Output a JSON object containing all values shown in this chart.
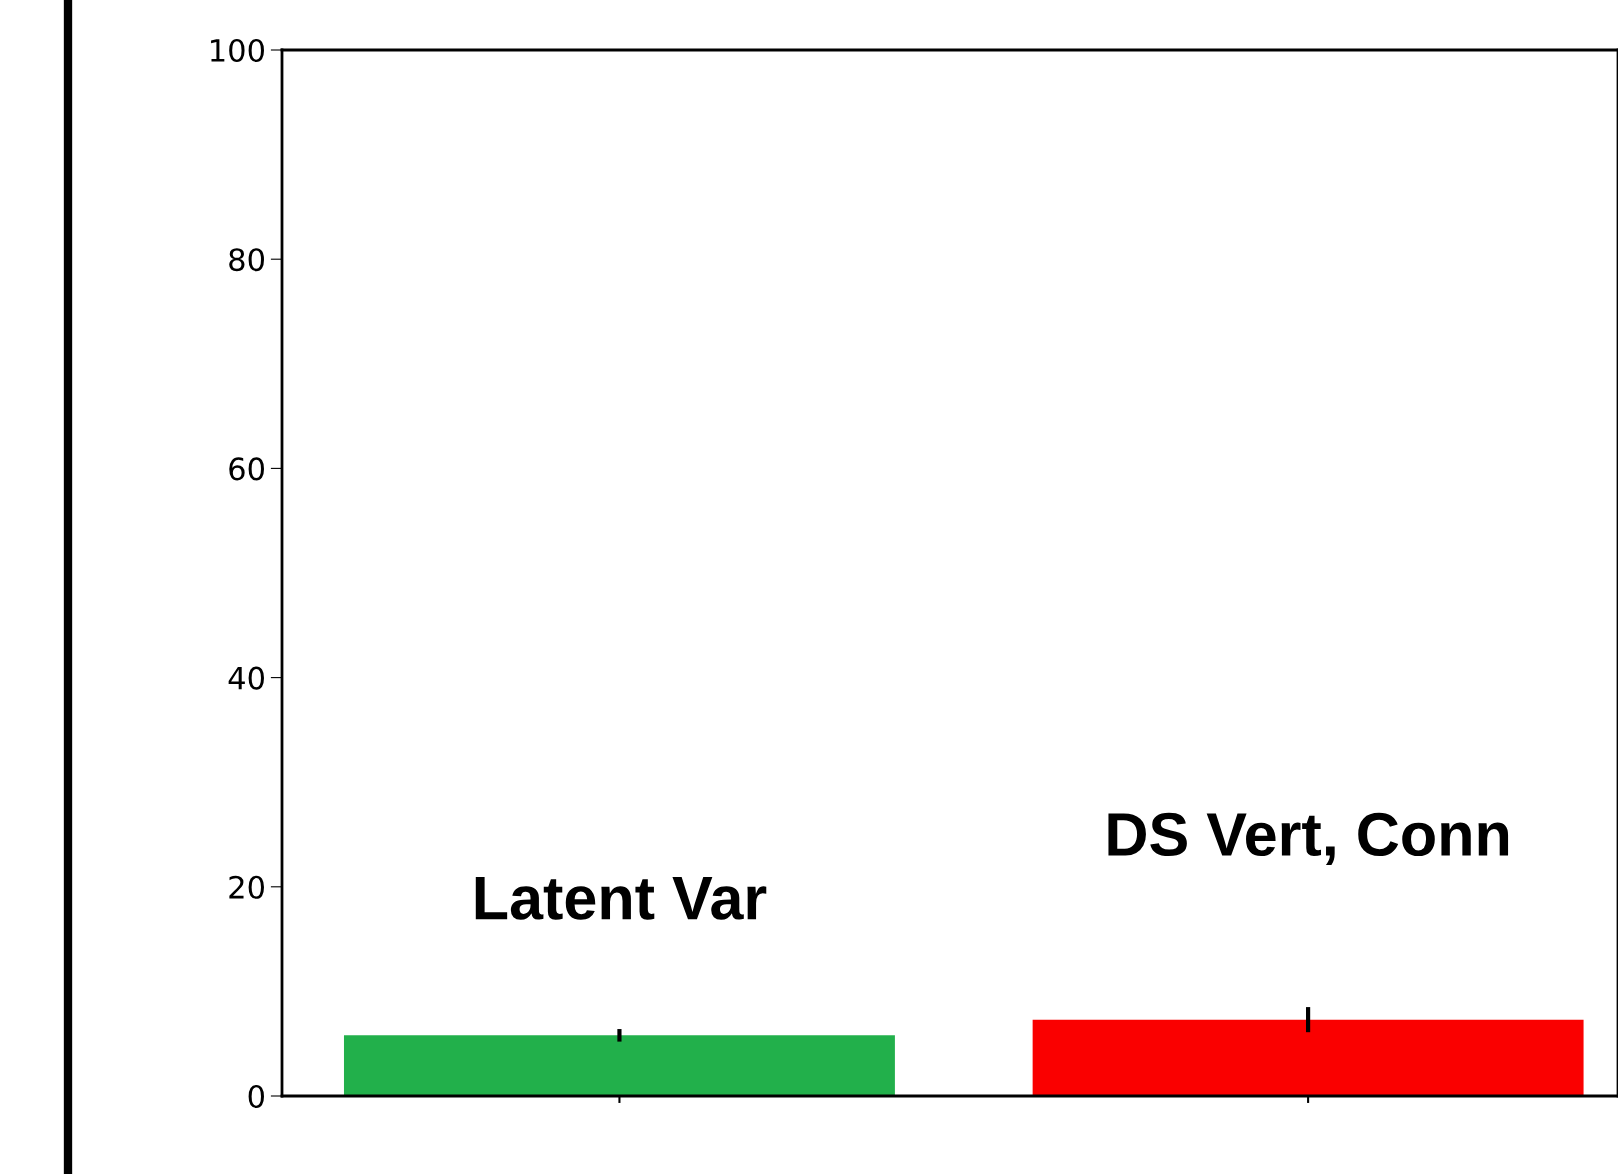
{
  "chart_data": {
    "type": "bar",
    "categories": [
      "Latent Var",
      "DS Vert, Conn"
    ],
    "values": [
      5.8,
      7.3
    ],
    "errors": [
      0.6,
      1.2
    ],
    "colors": [
      "#22b04b",
      "#fa0000"
    ],
    "ylim": [
      0,
      100
    ],
    "yticks": [
      0,
      20,
      40,
      60,
      80,
      100
    ],
    "grid": false,
    "tick_labels": "y"
  }
}
